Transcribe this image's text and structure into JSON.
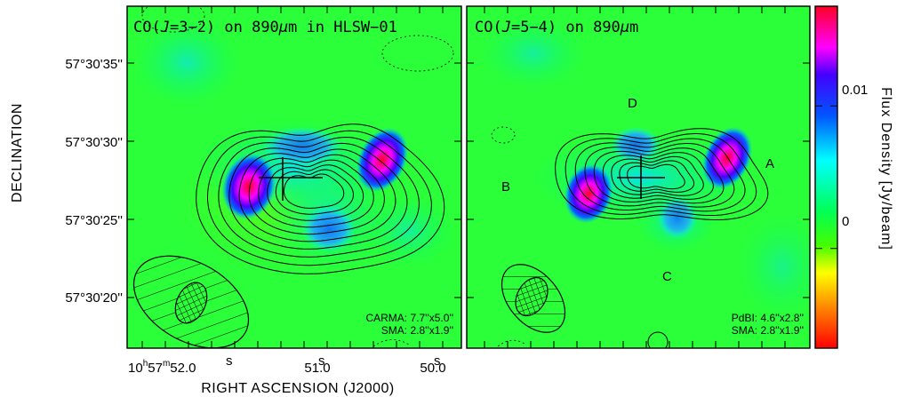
{
  "chart_data": [
    {
      "type": "heatmap",
      "title_main": "CO(",
      "title_italic": "J",
      "title_rest": "=3−2) on 890",
      "title_mu": "μ",
      "title_end": "m in HLSW−01",
      "xlabel": "RIGHT ASCENSION (J2000)",
      "ylabel": "DECLINATION",
      "y_ticks": [
        "57°30'35''",
        "57°30'30''",
        "57°30'25''",
        "57°30'20''"
      ],
      "x_ticks": [
        {
          "base": "10",
          "h": "h",
          "mid": "57",
          "m": "m",
          "val": "52.0",
          "s": "s"
        },
        {
          "val": "51.0",
          "s": "s"
        },
        {
          "val": "50.0",
          "s": "s"
        }
      ],
      "notes": [
        "CARMA: 7.7''x5.0''",
        "SMA: 2.8''x1.9''"
      ],
      "peaks_jy_beam": [
        0.016,
        0.016,
        0.006
      ]
    },
    {
      "type": "heatmap",
      "title_main": "CO(",
      "title_italic": "J",
      "title_rest": "=5−4) on 890",
      "title_mu": "μ",
      "title_end": "m",
      "features": [
        "A",
        "B",
        "C",
        "D"
      ],
      "notes": [
        "PdBI: 4.6''x2.8''",
        "SMA: 2.8''x1.9''"
      ],
      "peaks_jy_beam": [
        0.016,
        0.016
      ]
    }
  ],
  "colorbar": {
    "label": "Flux Density [Jy/beam]",
    "ticks": [
      {
        "label": "0.01",
        "value": 0.01
      },
      {
        "label": "0",
        "value": 0
      }
    ],
    "range": [
      -0.007,
      0.017
    ],
    "colors_bottom_to_top": [
      "#ff0000",
      "#ffa500",
      "#ffff00",
      "#00ff33",
      "#00ffff",
      "#0044ff",
      "#ff00ff",
      "#ff0000"
    ]
  }
}
